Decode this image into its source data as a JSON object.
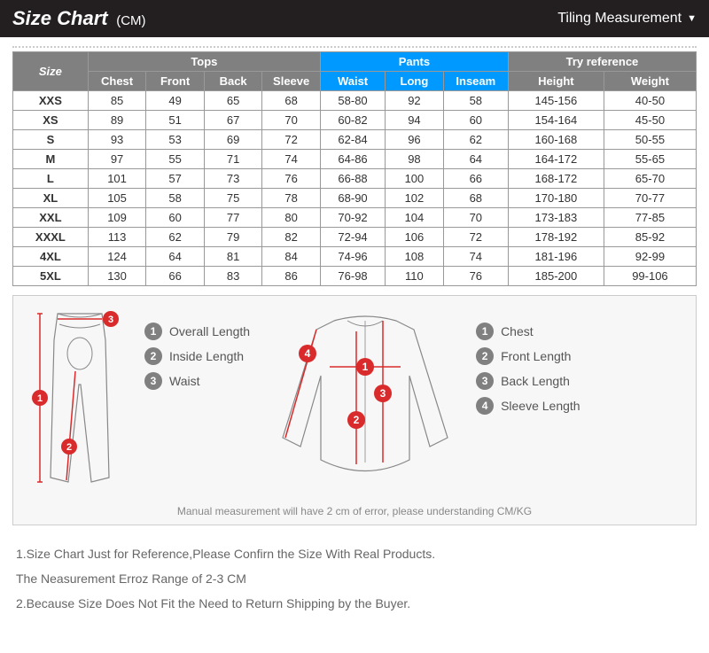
{
  "header": {
    "title": "Size Chart",
    "unit": "(CM)",
    "dropdown_label": "Tiling Measurement"
  },
  "table": {
    "size_header": "Size",
    "group_headers": [
      "Tops",
      "Pants",
      "Try reference"
    ],
    "sub_headers": {
      "tops": [
        "Chest",
        "Front",
        "Back",
        "Sleeve"
      ],
      "pants": [
        "Waist",
        "Long",
        "Inseam"
      ],
      "ref": [
        "Height",
        "Weight"
      ]
    },
    "colors": {
      "grey_header": "#808080",
      "blue_header": "#0099ff",
      "border": "#999999",
      "text": "#333333"
    },
    "rows": [
      {
        "size": "XXS",
        "chest": "85",
        "front": "49",
        "back": "65",
        "sleeve": "68",
        "waist": "58-80",
        "long": "92",
        "inseam": "58",
        "height": "145-156",
        "weight": "40-50"
      },
      {
        "size": "XS",
        "chest": "89",
        "front": "51",
        "back": "67",
        "sleeve": "70",
        "waist": "60-82",
        "long": "94",
        "inseam": "60",
        "height": "154-164",
        "weight": "45-50"
      },
      {
        "size": "S",
        "chest": "93",
        "front": "53",
        "back": "69",
        "sleeve": "72",
        "waist": "62-84",
        "long": "96",
        "inseam": "62",
        "height": "160-168",
        "weight": "50-55"
      },
      {
        "size": "M",
        "chest": "97",
        "front": "55",
        "back": "71",
        "sleeve": "74",
        "waist": "64-86",
        "long": "98",
        "inseam": "64",
        "height": "164-172",
        "weight": "55-65"
      },
      {
        "size": "L",
        "chest": "101",
        "front": "57",
        "back": "73",
        "sleeve": "76",
        "waist": "66-88",
        "long": "100",
        "inseam": "66",
        "height": "168-172",
        "weight": "65-70"
      },
      {
        "size": "XL",
        "chest": "105",
        "front": "58",
        "back": "75",
        "sleeve": "78",
        "waist": "68-90",
        "long": "102",
        "inseam": "68",
        "height": "170-180",
        "weight": "70-77"
      },
      {
        "size": "XXL",
        "chest": "109",
        "front": "60",
        "back": "77",
        "sleeve": "80",
        "waist": "70-92",
        "long": "104",
        "inseam": "70",
        "height": "173-183",
        "weight": "77-85"
      },
      {
        "size": "XXXL",
        "chest": "113",
        "front": "62",
        "back": "79",
        "sleeve": "82",
        "waist": "72-94",
        "long": "106",
        "inseam": "72",
        "height": "178-192",
        "weight": "85-92"
      },
      {
        "size": "4XL",
        "chest": "124",
        "front": "64",
        "back": "81",
        "sleeve": "84",
        "waist": "74-96",
        "long": "108",
        "inseam": "74",
        "height": "181-196",
        "weight": "92-99"
      },
      {
        "size": "5XL",
        "chest": "130",
        "front": "66",
        "back": "83",
        "sleeve": "86",
        "waist": "76-98",
        "long": "110",
        "inseam": "76",
        "height": "185-200",
        "weight": "99-106"
      }
    ]
  },
  "diagram": {
    "pants_legend": [
      "Overall Length",
      "Inside Length",
      "Waist"
    ],
    "top_legend": [
      "Chest",
      "Front Length",
      "Back Length",
      "Sleeve Length"
    ],
    "marker_color": "#d92b2b",
    "line_color": "#888888",
    "circle_bg": "#808080",
    "note": "Manual measurement will have 2 cm of error, please understanding  CM/KG"
  },
  "footer": {
    "line1": "1.Size Chart Just for Reference,Please Confirn the Size With Real Products.",
    "line2": "The Neasurement Erroz Range of 2-3 CM",
    "line3": "2.Because Size Does Not Fit the Need to Return Shipping by the Buyer."
  }
}
